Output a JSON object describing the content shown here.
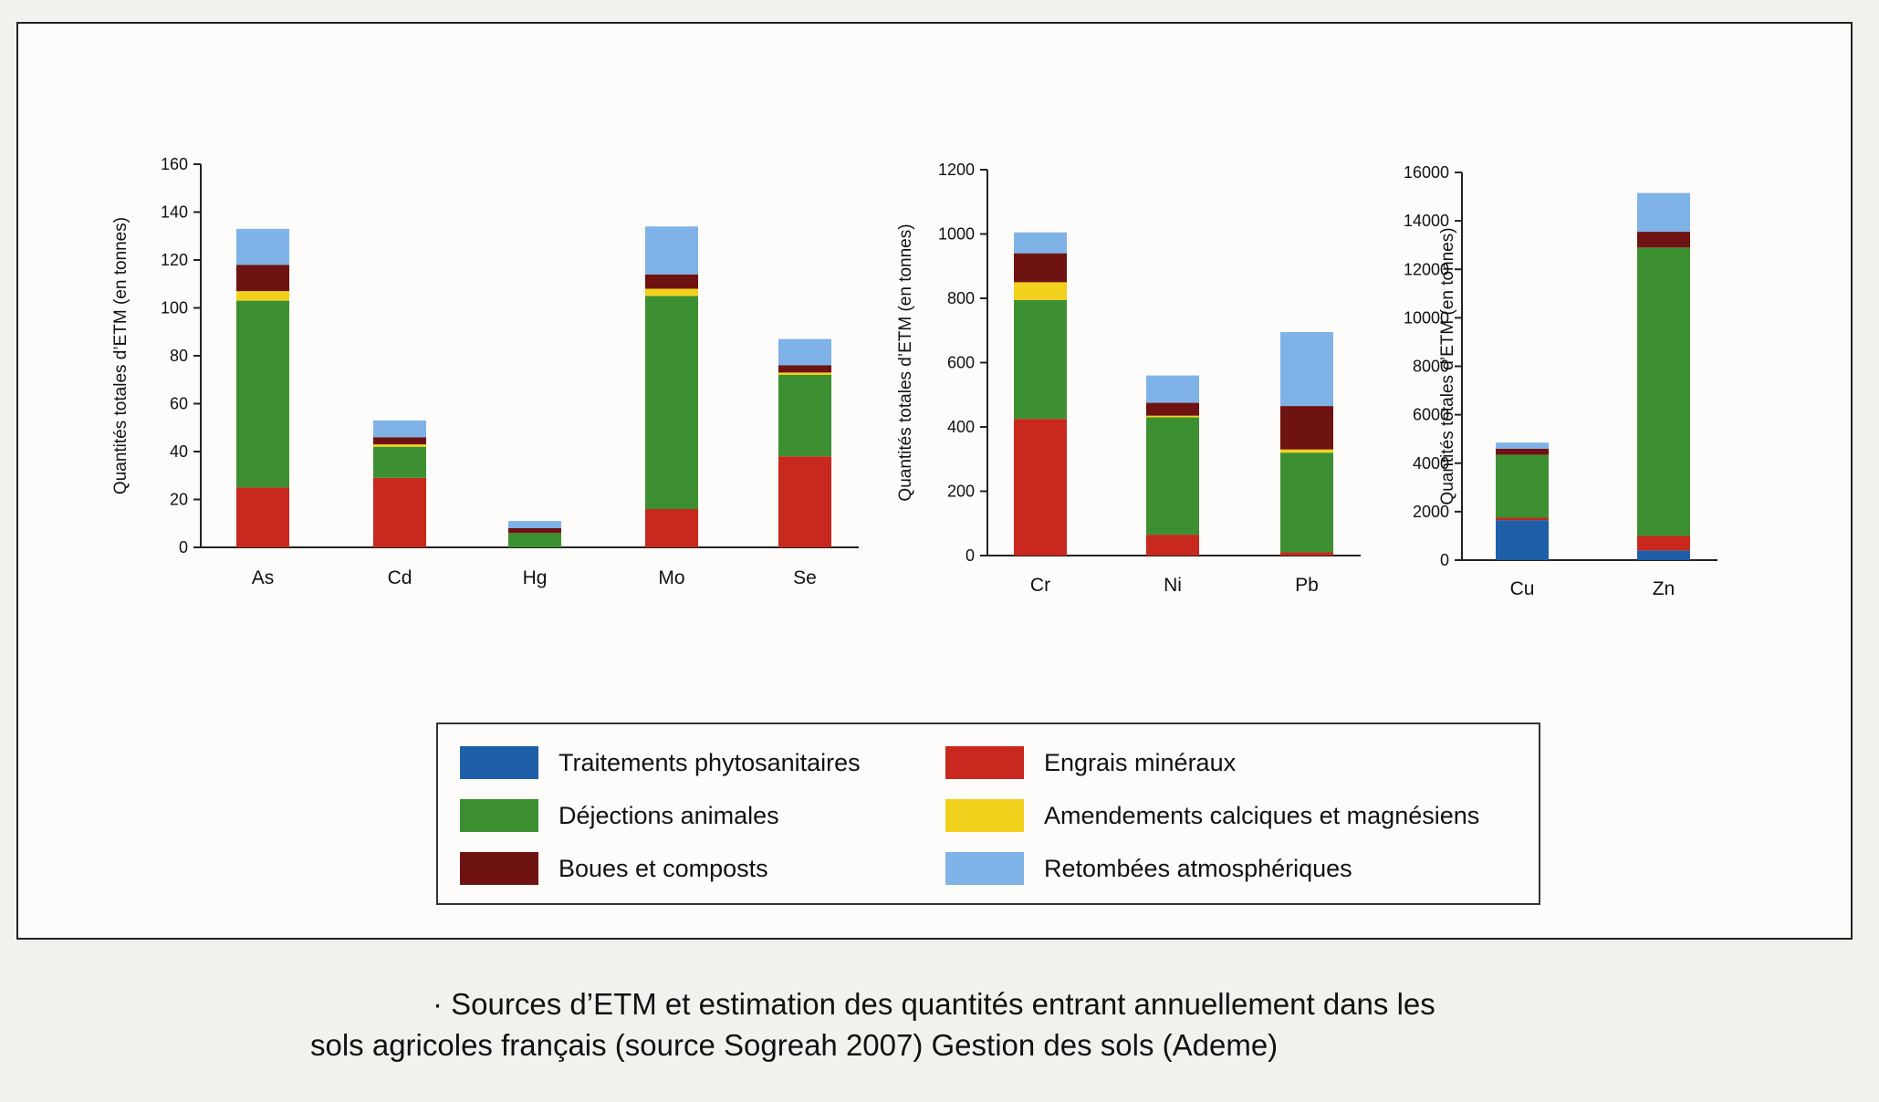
{
  "legend": {
    "items": [
      {
        "key": "phyto",
        "label": "Traitements phytosanitaires",
        "color": "#1f5fa8"
      },
      {
        "key": "engrais",
        "label": "Engrais minéraux",
        "color": "#c8281e"
      },
      {
        "key": "dejections",
        "label": "Déjections animales",
        "color": "#3d9032"
      },
      {
        "key": "amendements",
        "label": "Amendements calciques et magnésiens",
        "color": "#f2d11c"
      },
      {
        "key": "boues",
        "label": "Boues et composts",
        "color": "#6e1212"
      },
      {
        "key": "retombees",
        "label": "Retombées atmosphériques",
        "color": "#7fb3e8"
      }
    ]
  },
  "caption": {
    "line1": "· Sources d’ETM et estimation des quantités entrant annuellement dans les",
    "line2": "sols agricoles français (source Sogreah 2007)  Gestion des sols (Ademe)"
  },
  "chart_data": [
    {
      "type": "bar",
      "stacked": true,
      "ylabel": "Quantités totales d’ETM (en tonnes)",
      "ylim": [
        0,
        160
      ],
      "yticks": [
        0,
        20,
        40,
        60,
        80,
        100,
        120,
        140,
        160
      ],
      "categories": [
        "As",
        "Cd",
        "Hg",
        "Mo",
        "Se"
      ],
      "series": [
        {
          "key": "phyto",
          "values": [
            0,
            0,
            0,
            0,
            0
          ]
        },
        {
          "key": "engrais",
          "values": [
            25,
            29,
            0,
            16,
            38
          ]
        },
        {
          "key": "dejections",
          "values": [
            78,
            13,
            6,
            89,
            34
          ]
        },
        {
          "key": "amendements",
          "values": [
            4,
            1,
            0,
            3,
            1
          ]
        },
        {
          "key": "boues",
          "values": [
            11,
            3,
            2,
            6,
            3
          ]
        },
        {
          "key": "retombees",
          "values": [
            15,
            7,
            3,
            20,
            11
          ]
        }
      ]
    },
    {
      "type": "bar",
      "stacked": true,
      "ylabel": "Quantités totales d’ETM (en tonnes)",
      "ylim": [
        0,
        1200
      ],
      "yticks": [
        0,
        200,
        400,
        600,
        800,
        1000,
        1200
      ],
      "categories": [
        "Cr",
        "Ni",
        "Pb"
      ],
      "series": [
        {
          "key": "phyto",
          "values": [
            0,
            0,
            0
          ]
        },
        {
          "key": "engrais",
          "values": [
            425,
            65,
            10
          ]
        },
        {
          "key": "dejections",
          "values": [
            370,
            365,
            310
          ]
        },
        {
          "key": "amendements",
          "values": [
            55,
            5,
            10
          ]
        },
        {
          "key": "boues",
          "values": [
            90,
            40,
            135
          ]
        },
        {
          "key": "retombees",
          "values": [
            65,
            85,
            230
          ]
        }
      ]
    },
    {
      "type": "bar",
      "stacked": true,
      "ylabel": "Quantités totales d’ETM (en tonnes)",
      "ylim": [
        0,
        16000
      ],
      "yticks": [
        0,
        2000,
        4000,
        6000,
        8000,
        10000,
        12000,
        14000,
        16000
      ],
      "categories": [
        "Cu",
        "Zn"
      ],
      "series": [
        {
          "key": "phyto",
          "values": [
            1650,
            400
          ]
        },
        {
          "key": "engrais",
          "values": [
            100,
            600
          ]
        },
        {
          "key": "dejections",
          "values": [
            2600,
            11900
          ]
        },
        {
          "key": "amendements",
          "values": [
            0,
            0
          ]
        },
        {
          "key": "boues",
          "values": [
            250,
            650
          ]
        },
        {
          "key": "retombees",
          "values": [
            250,
            1600
          ]
        }
      ]
    }
  ]
}
